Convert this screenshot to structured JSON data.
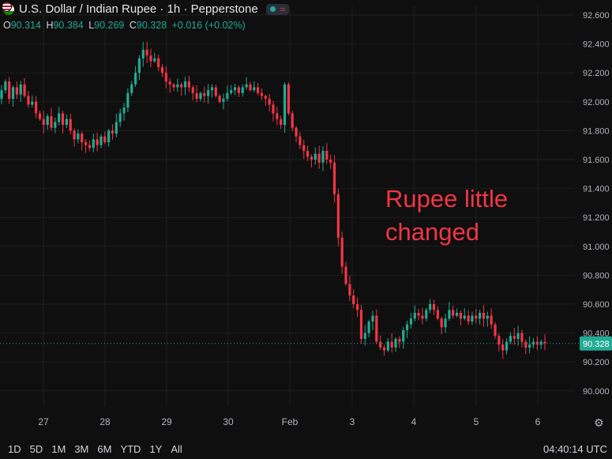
{
  "header": {
    "title": "U.S. Dollar / Indian Rupee · 1h · Pepperstone",
    "ohlc": [
      {
        "k": "O",
        "v": "90.314"
      },
      {
        "k": "H",
        "v": "90.384"
      },
      {
        "k": "L",
        "v": "90.269"
      },
      {
        "k": "C",
        "v": "90.328"
      }
    ],
    "change": "+0.016 (+0.02%)"
  },
  "annotation": [
    "Rupee little",
    "changed"
  ],
  "timeframes": [
    "1D",
    "5D",
    "1M",
    "3M",
    "6M",
    "YTD",
    "1Y",
    "All"
  ],
  "clock": "04:40:14 UTC",
  "colors": {
    "up": "#22ab94",
    "down": "#f23645",
    "background": "#0f0f0f",
    "grid": "#1f1f1f"
  },
  "icons": {
    "settings": "gear-icon",
    "market_status": "market-open-icon"
  },
  "chart_data": {
    "type": "candlestick",
    "ylim": [
      89.92,
      92.66
    ],
    "y_ticks": [
      "92.600",
      "92.400",
      "92.200",
      "92.000",
      "91.800",
      "91.600",
      "91.400",
      "91.200",
      "91.000",
      "90.800",
      "90.600",
      "90.400",
      "90.200",
      "90.000"
    ],
    "x_ticks": [
      "27",
      "28",
      "29",
      "30",
      "Feb",
      "3",
      "4",
      "5",
      "6"
    ],
    "last_price": "90.328",
    "closes": [
      92.08,
      92.14,
      92.02,
      92.1,
      92.05,
      92.12,
      92.04,
      91.98,
      92.0,
      91.92,
      91.88,
      91.84,
      91.9,
      91.82,
      91.86,
      91.92,
      91.84,
      91.88,
      91.8,
      91.74,
      91.78,
      91.72,
      91.7,
      91.68,
      91.74,
      91.7,
      91.76,
      91.72,
      91.8,
      91.78,
      91.86,
      91.92,
      91.96,
      92.06,
      92.12,
      92.2,
      92.3,
      92.36,
      92.32,
      92.28,
      92.3,
      92.24,
      92.2,
      92.14,
      92.12,
      92.1,
      92.12,
      92.1,
      92.14,
      92.1,
      92.06,
      92.02,
      92.06,
      92.04,
      92.08,
      92.1,
      92.04,
      92.0,
      92.02,
      92.06,
      92.08,
      92.1,
      92.06,
      92.1,
      92.12,
      92.08,
      92.1,
      92.06,
      92.04,
      92.02,
      91.98,
      91.92,
      91.88,
      91.84,
      92.12,
      91.92,
      91.82,
      91.76,
      91.7,
      91.66,
      91.62,
      91.6,
      91.64,
      91.58,
      91.66,
      91.6,
      91.58,
      91.36,
      91.06,
      90.86,
      90.74,
      90.66,
      90.6,
      90.56,
      90.36,
      90.4,
      90.48,
      90.52,
      90.34,
      90.3,
      90.28,
      90.34,
      90.3,
      90.36,
      90.34,
      90.42,
      90.46,
      90.5,
      90.54,
      90.52,
      90.5,
      90.56,
      90.6,
      90.56,
      90.5,
      90.44,
      90.5,
      90.56,
      90.52,
      90.54,
      90.5,
      90.52,
      90.48,
      90.52,
      90.5,
      90.54,
      90.5,
      90.52,
      90.46,
      90.38,
      90.32,
      90.28,
      90.34,
      90.38,
      90.36,
      90.4,
      90.34,
      90.3,
      90.32,
      90.34,
      90.32,
      90.34,
      90.33
    ]
  }
}
